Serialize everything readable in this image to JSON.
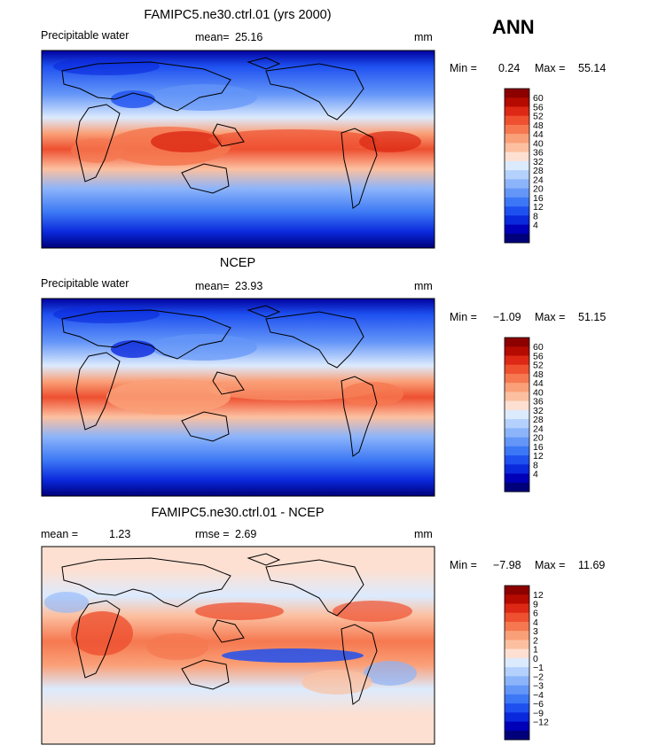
{
  "season": "ANN",
  "palette_full": [
    "#00007a",
    "#0000b8",
    "#0a28dc",
    "#1e50f0",
    "#3c78f5",
    "#6496f8",
    "#8cb4fa",
    "#b4d0fc",
    "#dceafd",
    "#fde0d2",
    "#fcc0a0",
    "#faa078",
    "#f57850",
    "#ee5030",
    "#dc2814",
    "#b40a00",
    "#8c0000"
  ],
  "palette_diff": [
    "#00007a",
    "#0000b8",
    "#0a28dc",
    "#1e50f0",
    "#3c78f5",
    "#6496f8",
    "#8cb4fa",
    "#b4d0fc",
    "#dceafd",
    "#fde0d2",
    "#fcc0a0",
    "#faa078",
    "#f57850",
    "#ee5030",
    "#dc2814",
    "#b40a00",
    "#8c0000"
  ],
  "coastline_color": "#000000",
  "panels": [
    {
      "id": "model",
      "title": "FAMIPC5.ne30.ctrl.01 (yrs 2000)",
      "left_text": "Precipitable water",
      "stat1_label": "mean=",
      "stat1_value": "25.16",
      "stat2_label": "",
      "stat2_value": "",
      "units": "mm",
      "min_label": "Min =",
      "min_value": "0.24",
      "max_label": "Max =",
      "max_value": "55.14",
      "legend_levels": [
        "60",
        "56",
        "52",
        "48",
        "44",
        "40",
        "36",
        "32",
        "28",
        "24",
        "20",
        "16",
        "12",
        "8",
        "4"
      ]
    },
    {
      "id": "obs",
      "title": "NCEP",
      "left_text": "Precipitable water",
      "stat1_label": "mean=",
      "stat1_value": "23.93",
      "stat2_label": "",
      "stat2_value": "",
      "units": "mm",
      "min_label": "Min =",
      "min_value": "−1.09",
      "max_label": "Max =",
      "max_value": "51.15",
      "legend_levels": [
        "60",
        "56",
        "52",
        "48",
        "44",
        "40",
        "36",
        "32",
        "28",
        "24",
        "20",
        "16",
        "12",
        "8",
        "4"
      ]
    },
    {
      "id": "diff",
      "title": "FAMIPC5.ne30.ctrl.01 - NCEP",
      "left_text": "",
      "stat1_label": "mean =",
      "stat1_value": "1.23",
      "stat2_label": "rmse =",
      "stat2_value": "2.69",
      "units": "mm",
      "min_label": "Min =",
      "min_value": "−7.98",
      "max_label": "Max =",
      "max_value": "11.69",
      "legend_levels": [
        "12",
        "9",
        "6",
        "4",
        "3",
        "2",
        "1",
        "0",
        "−1",
        "−2",
        "−3",
        "−4",
        "−6",
        "−9",
        "−12"
      ]
    }
  ]
}
